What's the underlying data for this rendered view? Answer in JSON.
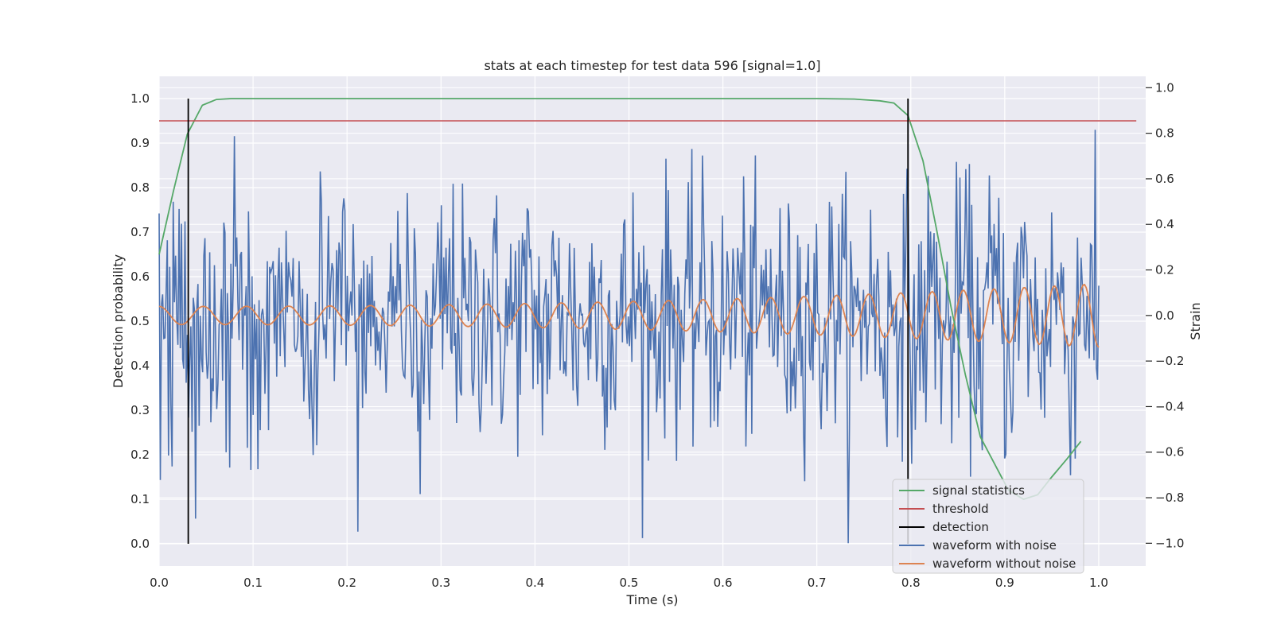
{
  "chart_data": {
    "type": "line",
    "title": "stats at each timestep for test data 596 [signal=1.0]",
    "xlabel": "Time (s)",
    "ylabel": "Detection probability",
    "y2label": "Strain",
    "xlim": [
      0.0,
      1.05
    ],
    "ylim": [
      -0.05,
      1.05
    ],
    "y2lim": [
      -1.1,
      1.05
    ],
    "x_ticks": [
      0.0,
      0.1,
      0.2,
      0.3,
      0.4,
      0.5,
      0.6,
      0.7,
      0.8,
      0.9,
      1.0
    ],
    "x_tick_labels": [
      "0.0",
      "0.1",
      "0.2",
      "0.3",
      "0.4",
      "0.5",
      "0.6",
      "0.7",
      "0.8",
      "0.9",
      "1.0"
    ],
    "y_ticks": [
      0.0,
      0.1,
      0.2,
      0.3,
      0.4,
      0.5,
      0.6,
      0.7,
      0.8,
      0.9,
      1.0
    ],
    "y_tick_labels": [
      "0.0",
      "0.1",
      "0.2",
      "0.3",
      "0.4",
      "0.5",
      "0.6",
      "0.7",
      "0.8",
      "0.9",
      "1.0"
    ],
    "y2_ticks": [
      -1.0,
      -0.8,
      -0.6,
      -0.4,
      -0.2,
      0.0,
      0.2,
      0.4,
      0.6,
      0.8,
      1.0
    ],
    "y2_tick_labels": [
      "−1.0",
      "−0.8",
      "−0.6",
      "−0.4",
      "−0.2",
      "0.0",
      "0.2",
      "0.4",
      "0.6",
      "0.8",
      "1.0"
    ],
    "grid": true,
    "legend_position": "lower-right",
    "signal_statistics": {
      "x": [
        0.0,
        0.015,
        0.03,
        0.046,
        0.061,
        0.077,
        0.092,
        0.108,
        0.2,
        0.4,
        0.6,
        0.7,
        0.74,
        0.767,
        0.782,
        0.797,
        0.813,
        0.828,
        0.843,
        0.858,
        0.874,
        0.889,
        0.904,
        0.92,
        0.935,
        0.95,
        0.966,
        0.981
      ],
      "values": [
        0.65,
        0.79,
        0.92,
        0.985,
        0.998,
        1.0,
        1.0,
        1.0,
        1.0,
        1.0,
        1.0,
        1.0,
        0.999,
        0.995,
        0.99,
        0.962,
        0.86,
        0.7,
        0.53,
        0.38,
        0.24,
        0.18,
        0.12,
        0.1,
        0.11,
        0.15,
        0.19,
        0.23
      ]
    },
    "threshold": {
      "value": 0.95,
      "xrange": [
        0.0,
        1.04
      ]
    },
    "detections": [
      {
        "x": 0.031,
        "ymin": 0.0,
        "ymax": 1.0
      },
      {
        "x": 0.797,
        "ymin": 0.0,
        "ymax": 1.0
      }
    ],
    "waveform_without_noise": {
      "axis": "right",
      "t_range": [
        0.0,
        1.0
      ],
      "amplitude_start": 0.04,
      "amplitude_end": 0.14,
      "cycles": [
        0.0,
        0.5,
        1.0,
        1.5,
        2.0,
        2.5,
        3.0,
        3.5,
        4.0,
        4.5,
        5.0,
        5.5,
        6.0,
        6.5,
        7.0,
        7.5,
        8.0,
        8.5,
        9.0,
        9.5,
        10.0,
        10.5,
        11.0,
        11.5,
        12.0,
        12.5,
        13.0,
        13.5,
        14.0,
        14.5,
        15.0,
        15.5,
        16.0,
        16.5,
        17.0,
        17.5,
        18.0,
        18.5,
        19.0,
        19.5,
        20.0,
        20.5,
        21.0,
        21.5,
        22.0,
        22.5,
        23.0,
        23.5,
        24.0,
        24.5,
        25.0,
        25.5,
        26.0,
        26.5
      ],
      "end_value": 0.09
    },
    "waveform_with_noise": {
      "axis": "right",
      "t_range": [
        0.0,
        1.0
      ],
      "n_points": 800,
      "noise_std": 0.28,
      "seed": 596,
      "max_value": 1.0,
      "min_value": -1.0
    },
    "legend": [
      {
        "label": "signal statistics",
        "color": "#55a868"
      },
      {
        "label": "threshold",
        "color": "#c44e52"
      },
      {
        "label": "detection",
        "color": "#000000"
      },
      {
        "label": "waveform with noise",
        "color": "#4c72b0"
      },
      {
        "label": "waveform without noise",
        "color": "#dd8452"
      }
    ]
  },
  "colors": {
    "axes_background": "#eaeaf2",
    "grid": "#ffffff",
    "text": "#262626"
  }
}
